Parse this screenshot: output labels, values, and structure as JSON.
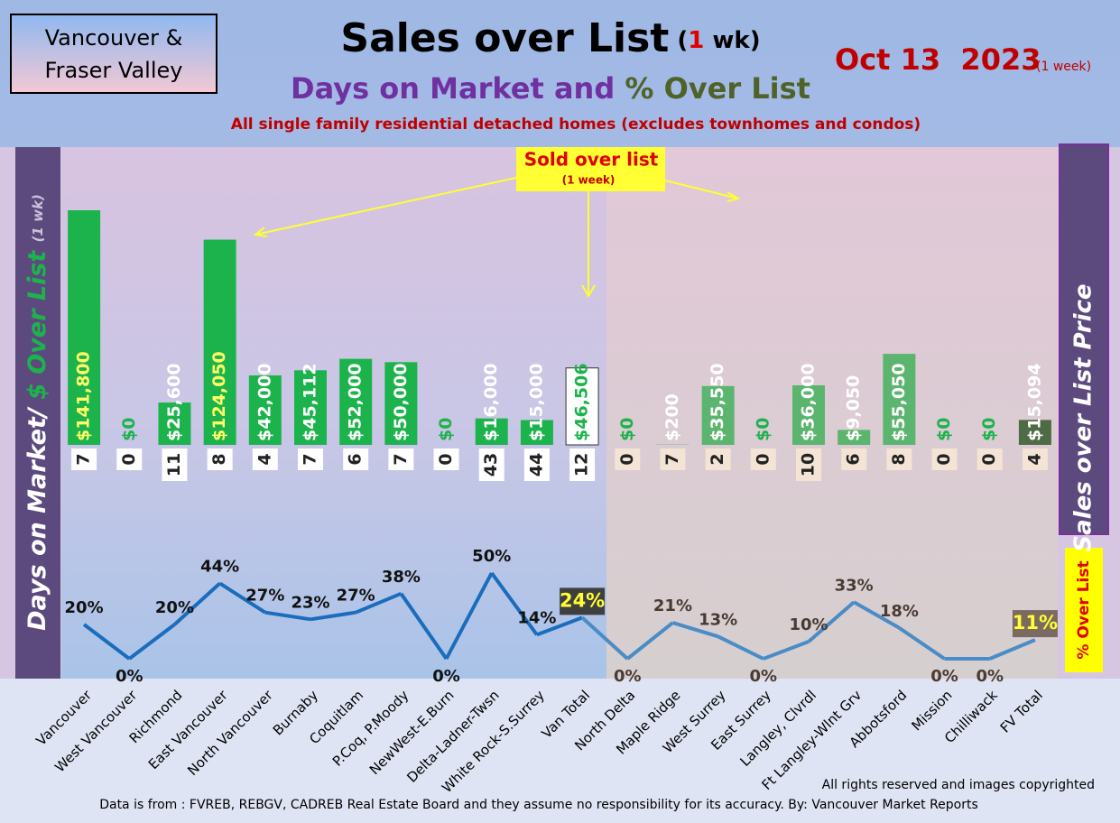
{
  "region": [
    "Vancouver &",
    "Fraser Valley"
  ],
  "chart_data": {
    "type": "combo",
    "title": "Sales over List",
    "title_period": {
      "open": "(",
      "number": 1,
      "close": " wk)"
    },
    "subtitle": [
      "Days on Market and",
      "% Over List"
    ],
    "note": "All single family residential detached homes (excludes townhomes and condos)",
    "date": "Oct 13  2023",
    "date_note": "(1 week)",
    "y_label": [
      "Days on Market/",
      "$ Over List",
      "(1 wk)"
    ],
    "y2_label": "Sales over List Price",
    "pct_label": "% Over List",
    "callout": [
      "Sold over list",
      "(1 week)"
    ],
    "categories": [
      "Vancouver",
      "West Vancouver",
      "Richmond",
      "East Vancouver",
      "North Vancouver",
      "Burnaby",
      "Coquitlam",
      "P.Coq, P.Moody",
      "NewWest-E.Burn",
      "Delta-Ladner-Twsn",
      "White Rock-S.Surrey",
      "Van Total",
      "North Delta",
      "Maple Ridge",
      "West Surrey",
      "East Surrey",
      "Langley, Clvrdl",
      "Ft Langley-Wlnt Grv",
      "Abbotsford",
      "Mission",
      "Chilliwack",
      "FV Total"
    ],
    "dollars": {
      "values": [
        141800,
        0,
        25600,
        124050,
        42000,
        45112,
        52000,
        50000,
        0,
        16000,
        15000,
        46506,
        0,
        200,
        35550,
        0,
        36000,
        9050,
        55050,
        0,
        0,
        15094
      ],
      "value_labels": [
        "$141,800",
        "$0",
        "$25,600",
        "$124,050",
        "$42,000",
        "$45,112",
        "$52,000",
        "$50,000",
        "$0",
        "$16,000",
        "$15,000",
        "$46,506",
        "$0",
        "$200",
        "$35,550",
        "$0",
        "$36,000",
        "$9,050",
        "$55,050",
        "$0",
        "$0",
        "$15,094"
      ],
      "colors": [
        "#1db34c",
        "#1db34c",
        "#1db34c",
        "#1db34c",
        "#1db34c",
        "#1db34c",
        "#1db34c",
        "#1db34c",
        "#1db34c",
        "#1db34c",
        "#1db34c",
        "#ffffff",
        "#5bb56e",
        "#5bb56e",
        "#5bb56e",
        "#5bb56e",
        "#5bb56e",
        "#5bb56e",
        "#5bb56e",
        "#5bb56e",
        "#5bb56e",
        "#4f6b45"
      ]
    },
    "days": {
      "values": [
        7,
        0,
        11,
        8,
        4,
        7,
        6,
        7,
        0,
        43,
        44,
        12,
        0,
        7,
        2,
        0,
        10,
        6,
        8,
        0,
        0,
        4
      ],
      "box_colors": [
        "#ffffff",
        "#ffffff",
        "#ffffff",
        "#ffffff",
        "#ffffff",
        "#ffffff",
        "#ffffff",
        "#ffffff",
        "#ffffff",
        "#ffffff",
        "#ffffff",
        "#ffffff",
        "#f3e4d6",
        "#f3e4d6",
        "#f3e4d6",
        "#f3e4d6",
        "#f3e4d6",
        "#f3e4d6",
        "#f3e4d6",
        "#f3e4d6",
        "#f3e4d6",
        "#f3e4d6"
      ]
    },
    "pct": {
      "values": [
        20,
        0,
        20,
        44,
        27,
        23,
        27,
        38,
        0,
        50,
        14,
        24,
        0,
        21,
        13,
        0,
        10,
        33,
        18,
        0,
        0,
        11
      ],
      "value_labels": [
        "20%",
        "0%",
        "20%",
        "44%",
        "27%",
        "23%",
        "27%",
        "38%",
        "0%",
        "50%",
        "14%",
        "24%",
        "0%",
        "21%",
        "13%",
        "0%",
        "10%",
        "33%",
        "18%",
        "0%",
        "0%",
        "11%"
      ],
      "colors": [
        "#1a6dbd",
        "#1a6dbd",
        "#1a6dbd",
        "#1a6dbd",
        "#1a6dbd",
        "#1a6dbd",
        "#1a6dbd",
        "#1a6dbd",
        "#1a6dbd",
        "#1a6dbd",
        "#1a6dbd",
        "#1a6dbd",
        "#4a8cc6",
        "#4a8cc6",
        "#4a8cc6",
        "#4a8cc6",
        "#4a8cc6",
        "#4a8cc6",
        "#4a8cc6",
        "#4a8cc6",
        "#4a8cc6",
        "#4a8cc6"
      ]
    },
    "footer": [
      "All rights reserved and  images copyrighted",
      "Data is from : FVREB, REBGV, CADREB Real Estate Board and they assume no responsibility for its accuracy. By: Vancouver Market Reports"
    ]
  }
}
